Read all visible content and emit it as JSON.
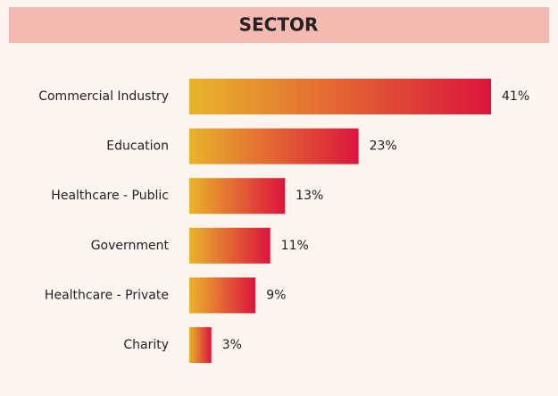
{
  "chart_data": {
    "type": "barh",
    "title": "SECTOR",
    "categories": [
      "Commercial Industry",
      "Education",
      "Healthcare - Public",
      "Government",
      "Healthcare - Private",
      "Charity"
    ],
    "values": [
      41,
      23,
      13,
      11,
      9,
      3
    ],
    "value_labels": [
      "41%",
      "23%",
      "13%",
      "11%",
      "9%",
      "3%"
    ],
    "gradient": [
      "#e9b42b",
      "#dc143c"
    ]
  }
}
